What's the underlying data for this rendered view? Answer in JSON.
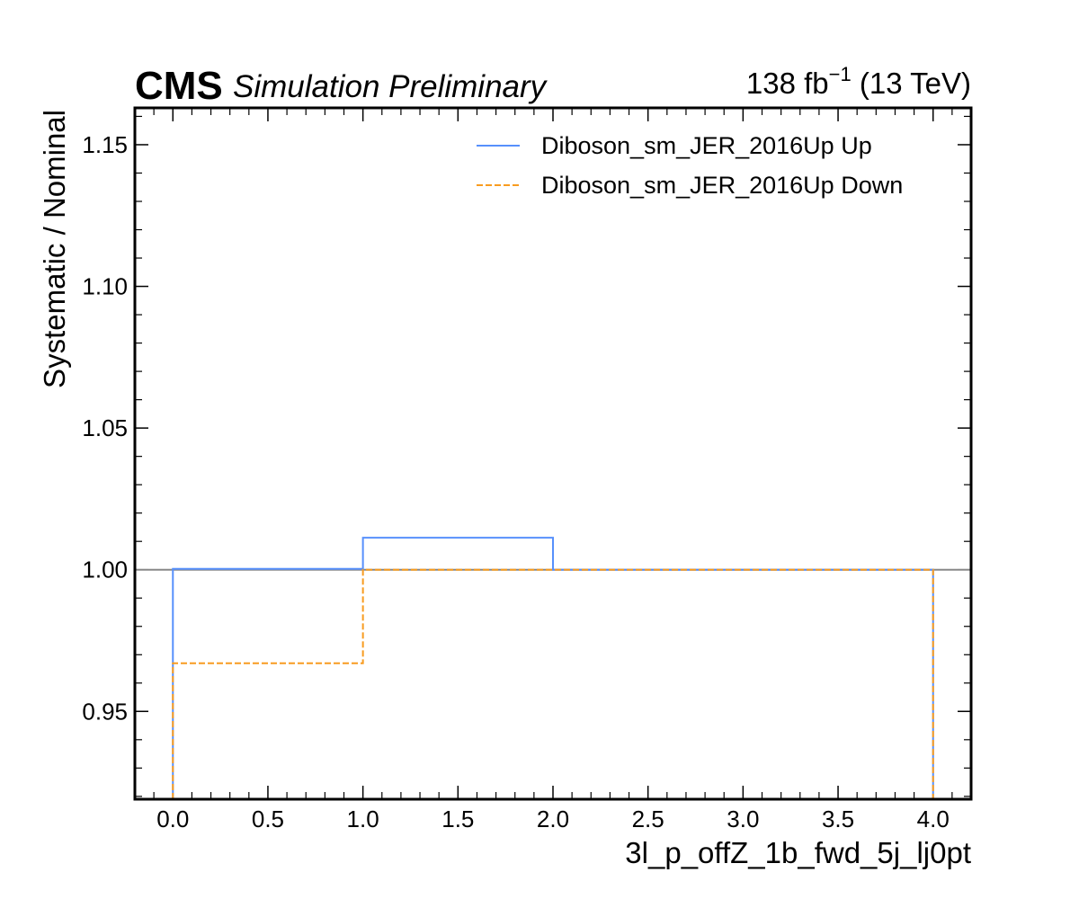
{
  "header": {
    "experiment": "CMS",
    "extra_text": "Simulation Preliminary",
    "lumi_value": "138 fb",
    "lumi_exp": "−1",
    "lumi_energy": " (13 TeV)"
  },
  "chart_data": {
    "type": "line",
    "drawstyle": "steps",
    "xlabel": "3l_p_offZ_1b_fwd_5j_lj0pt",
    "ylabel": "Systematic / Nominal",
    "xlim": [
      -0.2,
      4.2
    ],
    "ylim": [
      0.919,
      1.163
    ],
    "xticks": [
      0.0,
      0.5,
      1.0,
      1.5,
      2.0,
      2.5,
      3.0,
      3.5,
      4.0
    ],
    "xtick_labels": [
      "0.0",
      "0.5",
      "1.0",
      "1.5",
      "2.0",
      "2.5",
      "3.0",
      "3.5",
      "4.0"
    ],
    "yticks": [
      0.95,
      1.0,
      1.05,
      1.1,
      1.15
    ],
    "ytick_labels": [
      "0.95",
      "1.00",
      "1.05",
      "1.10",
      "1.15"
    ],
    "bin_edges": [
      0,
      1,
      2,
      3,
      4
    ],
    "reference_line": 1.0,
    "legend_position": "top-right",
    "series": [
      {
        "name": "Diboson_sm_JER_2016Up Up",
        "values": [
          1.0003,
          1.0113,
          1.0,
          1.0
        ],
        "color": "#5790fc",
        "dashed": false
      },
      {
        "name": "Diboson_sm_JER_2016Up Down",
        "values": [
          0.967,
          1.0,
          1.0,
          1.0
        ],
        "color": "#f89c20",
        "dashed": true
      }
    ],
    "reference_color": "#888888"
  }
}
